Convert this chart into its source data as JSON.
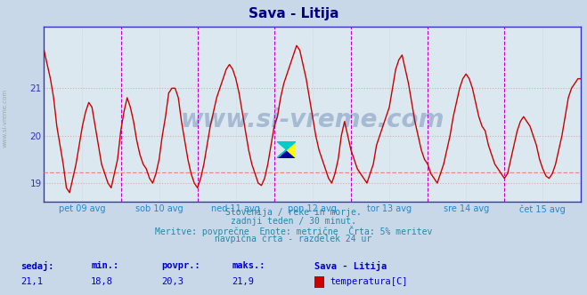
{
  "title": "Sava - Litija",
  "title_color": "#000080",
  "bg_color": "#c8d8e8",
  "plot_bg_color": "#dce8f0",
  "line_color": "#cc0000",
  "line_width": 1.0,
  "ylim": [
    18.6,
    22.3
  ],
  "yticks": [
    19,
    20,
    21
  ],
  "ylabel_color": "#3333aa",
  "avg_line_y": 19.22,
  "avg_line_color": "#ee8888",
  "magenta_vlines": [
    1.0,
    2.0,
    3.0,
    4.0,
    5.0,
    6.0
  ],
  "magenta_color": "#cc00cc",
  "gray_vlines_step": 0.5,
  "xlabel_color": "#2288cc",
  "xtick_labels": [
    "pet 09 avg",
    "sob 10 avg",
    "ned 11 avg",
    "pon 12 avg",
    "tor 13 avg",
    "sre 14 avg",
    "čet 15 avg"
  ],
  "xtick_positions": [
    0.5,
    1.5,
    2.5,
    3.5,
    4.5,
    5.5,
    6.5
  ],
  "bottom_text1": "Slovenija / reke in morje.",
  "bottom_text2": "zadnji teden / 30 minut.",
  "bottom_text3": "Meritve: povprečne  Enote: metrične  Črta: 5% meritev",
  "bottom_text4": "navpična črta - razdelek 24 ur",
  "bottom_text_color": "#2288aa",
  "legend_labels": [
    "sedaj:",
    "min.:",
    "povpr.:",
    "maks.:"
  ],
  "legend_values": [
    "21,1",
    "18,8",
    "20,3",
    "21,9"
  ],
  "legend_color": "#0000cc",
  "watermark_text": "www.si-vreme.com",
  "watermark_color": "#1a4488",
  "watermark_alpha": 0.28,
  "axis_color": "#3333cc",
  "grid_h_color": "#ddaaaa",
  "grid_v_color": "#cccccc",
  "sidebar_text": "www.si-vreme.com",
  "sidebar_color": "#888888",
  "temp_data": [
    21.8,
    21.5,
    21.2,
    20.8,
    20.2,
    19.8,
    19.4,
    18.9,
    18.8,
    19.1,
    19.4,
    19.8,
    20.2,
    20.5,
    20.7,
    20.6,
    20.2,
    19.8,
    19.4,
    19.2,
    19.0,
    18.9,
    19.2,
    19.5,
    20.1,
    20.5,
    20.8,
    20.6,
    20.3,
    19.9,
    19.6,
    19.4,
    19.3,
    19.1,
    19.0,
    19.2,
    19.5,
    20.0,
    20.4,
    20.9,
    21.0,
    21.0,
    20.8,
    20.3,
    19.9,
    19.5,
    19.2,
    19.0,
    18.9,
    19.1,
    19.4,
    19.8,
    20.2,
    20.5,
    20.8,
    21.0,
    21.2,
    21.4,
    21.5,
    21.4,
    21.2,
    20.9,
    20.5,
    20.1,
    19.7,
    19.4,
    19.2,
    19.0,
    18.95,
    19.1,
    19.4,
    19.8,
    20.2,
    20.4,
    20.8,
    21.1,
    21.3,
    21.5,
    21.7,
    21.9,
    21.8,
    21.5,
    21.2,
    20.8,
    20.4,
    20.0,
    19.7,
    19.5,
    19.3,
    19.1,
    19.0,
    19.2,
    19.5,
    20.0,
    20.3,
    20.0,
    19.7,
    19.5,
    19.3,
    19.2,
    19.1,
    19.0,
    19.2,
    19.4,
    19.8,
    20.0,
    20.2,
    20.4,
    20.6,
    21.0,
    21.4,
    21.6,
    21.7,
    21.4,
    21.1,
    20.7,
    20.3,
    20.0,
    19.7,
    19.5,
    19.4,
    19.2,
    19.1,
    19.0,
    19.2,
    19.4,
    19.7,
    20.0,
    20.4,
    20.7,
    21.0,
    21.2,
    21.3,
    21.2,
    21.0,
    20.7,
    20.4,
    20.2,
    20.1,
    19.8,
    19.6,
    19.4,
    19.3,
    19.2,
    19.1,
    19.2,
    19.5,
    19.8,
    20.1,
    20.3,
    20.4,
    20.3,
    20.2,
    20.0,
    19.8,
    19.5,
    19.3,
    19.15,
    19.1,
    19.2,
    19.4,
    19.7,
    20.0,
    20.4,
    20.8,
    21.0,
    21.1,
    21.2,
    21.2
  ]
}
